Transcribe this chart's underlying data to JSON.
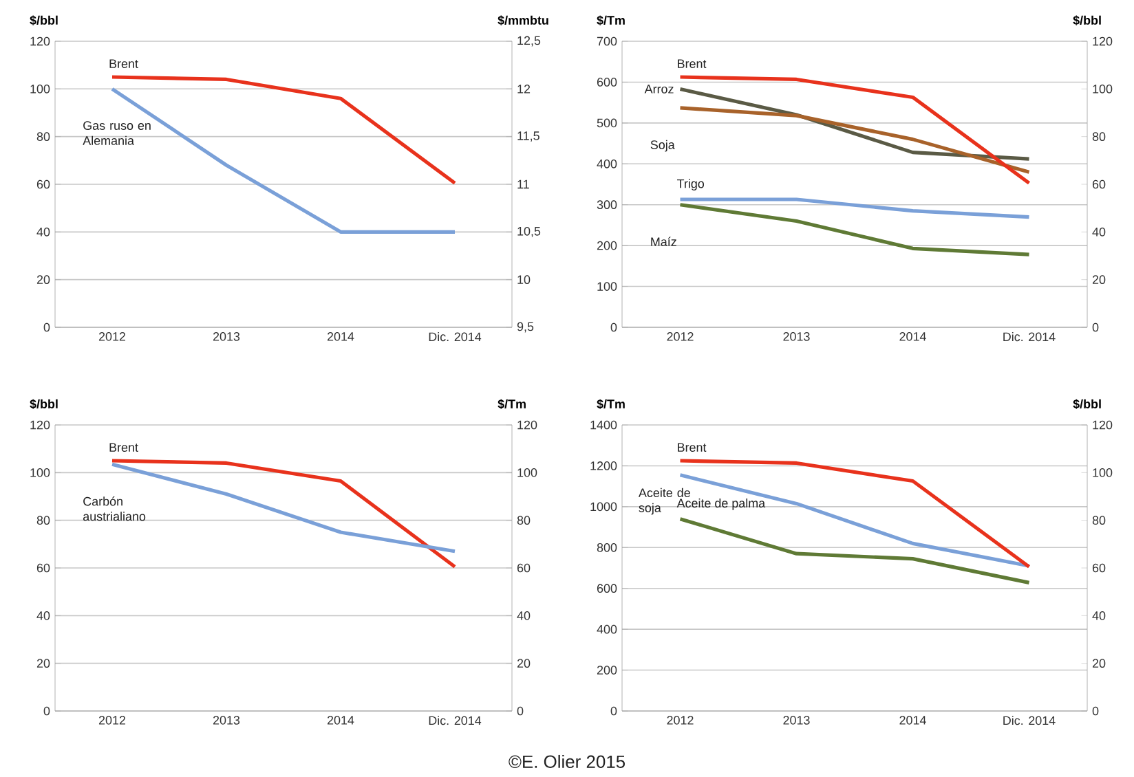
{
  "chart_data": [
    {
      "type": "line",
      "ylabel": "$/bbl",
      "y2label": "$/mmbtu",
      "categories": [
        "2012",
        "2013",
        "2014",
        "Dic. 2014"
      ],
      "ylim": [
        0,
        120
      ],
      "yticks": [
        0,
        20,
        40,
        60,
        80,
        100,
        120
      ],
      "y2lim": [
        9.5,
        12.5
      ],
      "y2ticks": [
        {
          "value": 9.5,
          "label": "9,5"
        },
        10,
        {
          "value": 10.5,
          "label": "10,5"
        },
        11,
        {
          "value": 11.5,
          "label": "11,5"
        },
        12,
        {
          "value": 12.5,
          "label": "12,5"
        }
      ],
      "grid": "y",
      "series": [
        {
          "name": "Brent",
          "color": "#e8321c",
          "values": [
            105,
            104,
            96,
            60.5
          ]
        },
        {
          "name": "Gas ruso en Alemania",
          "color": "#7aa0d8",
          "axis": "y2",
          "values": [
            12,
            11.2,
            10.5,
            10.5
          ]
        }
      ]
    },
    {
      "type": "line",
      "ylabel": "$/Tm",
      "y2label": "$/bbl",
      "categories": [
        "2012",
        "2013",
        "2014",
        "Dic. 2014"
      ],
      "ylim": [
        0,
        700
      ],
      "yticks": [
        0,
        100,
        200,
        300,
        400,
        500,
        600,
        700
      ],
      "y2lim": [
        0,
        120
      ],
      "y2ticks": [
        0,
        20,
        40,
        60,
        80,
        100,
        120
      ],
      "grid": "y",
      "series": [
        {
          "name": "Brent",
          "color": "#e8321c",
          "axis": "y2",
          "values": [
            105,
            104,
            96.5,
            60.5
          ]
        },
        {
          "name": "Arroz",
          "color": "#5a5a45",
          "values": [
            583,
            520,
            428,
            412
          ]
        },
        {
          "name": "Soja",
          "color": "#a8622a",
          "values": [
            537,
            518,
            460,
            380
          ]
        },
        {
          "name": "Trigo",
          "color": "#7aa0d8",
          "values": [
            313,
            313,
            285,
            270
          ]
        },
        {
          "name": "Maíz",
          "color": "#5f7a35",
          "values": [
            300,
            260,
            193,
            178
          ]
        }
      ]
    },
    {
      "type": "line",
      "ylabel": "$/bbl",
      "y2label": "$/Tm",
      "categories": [
        "2012",
        "2013",
        "2014",
        "Dic. 2014"
      ],
      "ylim": [
        0,
        120
      ],
      "yticks": [
        0,
        20,
        40,
        60,
        80,
        100,
        120
      ],
      "y2lim": [
        0,
        120
      ],
      "y2ticks": [
        0,
        20,
        40,
        60,
        80,
        100,
        120
      ],
      "grid": "y",
      "series": [
        {
          "name": "Brent",
          "color": "#e8321c",
          "values": [
            105,
            104,
            96.5,
            60.5
          ]
        },
        {
          "name": "Carbón austrialiano",
          "color": "#7aa0d8",
          "axis": "y2",
          "values": [
            103.5,
            91,
            75,
            67
          ]
        }
      ]
    },
    {
      "type": "line",
      "ylabel": "$/Tm",
      "y2label": "$/bbl",
      "categories": [
        "2012",
        "2013",
        "2014",
        "Dic. 2014"
      ],
      "ylim": [
        0,
        1400
      ],
      "yticks": [
        0,
        200,
        400,
        600,
        800,
        1000,
        1200,
        1400
      ],
      "y2lim": [
        0,
        120
      ],
      "y2ticks": [
        0,
        20,
        40,
        60,
        80,
        100,
        120
      ],
      "grid": "y",
      "annotations": [
        "©E. Olier 2015"
      ],
      "series": [
        {
          "name": "Brent",
          "color": "#e8321c",
          "axis": "y2",
          "values": [
            105,
            104,
            96.5,
            60.5
          ]
        },
        {
          "name": "Aceite de soja",
          "color": "#7aa0d8",
          "values": [
            1155,
            1015,
            820,
            710
          ]
        },
        {
          "name": "Aceite de palma",
          "color": "#5f7a35",
          "values": [
            940,
            770,
            745,
            628
          ]
        }
      ]
    }
  ]
}
